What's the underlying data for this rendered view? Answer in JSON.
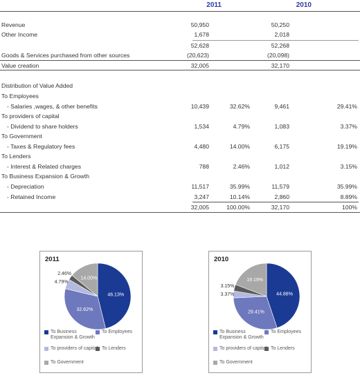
{
  "columns": {
    "year1": "2011",
    "year2": "2010"
  },
  "rows": {
    "revenue": {
      "label": "Revenue",
      "y1": "50,950",
      "y2": "50,250"
    },
    "other_income": {
      "label": "Other Income",
      "y1": "1,678",
      "y2": "2,018"
    },
    "subtotal": {
      "y1": "52,628",
      "y2": "52,268"
    },
    "goods": {
      "label": "Goods & Services purchased from other sources",
      "y1": "(20,623)",
      "y2": "(20,098)"
    },
    "value_creation": {
      "label": "Value creation",
      "y1": "32,005",
      "y2": "32,170"
    }
  },
  "distribution": {
    "title": "Distribution of Value Added",
    "to_employees": "To Employees",
    "salaries": {
      "label": "- Salaries ,wages, & other benefits",
      "y1": "10,439",
      "p1": "32.62%",
      "y2": "9,461",
      "p2": "29.41%"
    },
    "to_capital": "To providers of capital",
    "dividend": {
      "label": "- Dividend to share holders",
      "y1": "1,534",
      "p1": "4.79%",
      "y2": "1,083",
      "p2": "3.37%"
    },
    "to_government": "To Government",
    "taxes": {
      "label": "- Taxes & Regulatory fees",
      "y1": "4,480",
      "p1": "14.00%",
      "y2": "6,175",
      "p2": "19.19%"
    },
    "to_lenders": "To Lenders",
    "interest": {
      "label": "- Interest & Related charges",
      "y1": "788",
      "p1": "2.46%",
      "y2": "1,012",
      "p2": "3.15%"
    },
    "to_expansion": "To Business Expansion & Growth",
    "depreciation": {
      "label": "- Depreciation",
      "y1": "11,517",
      "p1": "35.99%",
      "y2": "11,579",
      "p2": "35.99%"
    },
    "retained": {
      "label": "- Retained Income",
      "y1": "3,247",
      "p1": "10.14%",
      "y2": "2,860",
      "p2": "8.89%"
    },
    "total": {
      "y1": "32,005",
      "p1": "100.00%",
      "y2": "32,170",
      "p2": "100%"
    }
  },
  "colors": {
    "expansion": "#1b3a94",
    "employees": "#6e78bd",
    "capital": "#b4b9e0",
    "lenders": "#5a5a5a",
    "government": "#a8a8a8"
  },
  "legend": {
    "expansion": "To Business Expansion & Growth",
    "employees": "To Employees",
    "capital": "To providers of capital",
    "lenders": "To Lenders",
    "government": "To Government"
  },
  "chart_data": [
    {
      "type": "pie",
      "title": "2011",
      "categories": [
        "To Business Expansion & Growth",
        "To Employees",
        "To providers of capital",
        "To Lenders",
        "To Government"
      ],
      "values": [
        46.13,
        32.62,
        4.79,
        2.46,
        14.0
      ],
      "labels": [
        "46.13%",
        "32.62%",
        "4.79%",
        "2.46%",
        "14.00%"
      ],
      "legend": "bottom"
    },
    {
      "type": "pie",
      "title": "2010",
      "categories": [
        "To Business Expansion & Growth",
        "To Employees",
        "To providers of capital",
        "To Lenders",
        "To Government"
      ],
      "values": [
        44.88,
        29.41,
        3.37,
        3.15,
        19.19
      ],
      "labels": [
        "44.88%",
        "29.41%",
        "3.37%",
        "3.15%",
        "19.19%"
      ],
      "legend": "bottom"
    }
  ]
}
